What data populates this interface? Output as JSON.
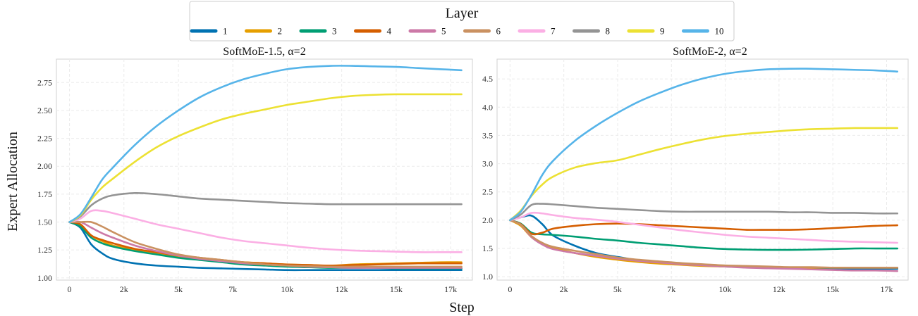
{
  "legend": {
    "title": "Layer",
    "entries": [
      {
        "label": "1",
        "color": "#0072b2"
      },
      {
        "label": "2",
        "color": "#e69f00"
      },
      {
        "label": "3",
        "color": "#009e73"
      },
      {
        "label": "4",
        "color": "#d55e00"
      },
      {
        "label": "5",
        "color": "#cc79a7"
      },
      {
        "label": "6",
        "color": "#ca9161"
      },
      {
        "label": "7",
        "color": "#fbafe4"
      },
      {
        "label": "8",
        "color": "#949494"
      },
      {
        "label": "9",
        "color": "#ece133"
      },
      {
        "label": "10",
        "color": "#56b4e9"
      }
    ]
  },
  "xlabel": "Step",
  "ylabel": "Expert Allocation",
  "chart_data": [
    {
      "type": "line",
      "title": "SoftMoE-1.5, α=2",
      "xlim": [
        -600,
        18500
      ],
      "ylim": [
        0.98,
        2.96
      ],
      "grid": true,
      "x_ticks": [
        0,
        2500,
        5000,
        7500,
        10000,
        12500,
        15000,
        17500
      ],
      "x_tick_labels": [
        "0",
        "2k",
        "5k",
        "7k",
        "10k",
        "12k",
        "15k",
        "17k"
      ],
      "y_ticks": [
        1.0,
        1.25,
        1.5,
        1.75,
        2.0,
        2.25,
        2.5,
        2.75
      ],
      "y_tick_labels": [
        "1.00",
        "1.25",
        "1.50",
        "1.75",
        "2.00",
        "2.25",
        "2.50",
        "2.75"
      ],
      "x": [
        0,
        500,
        1000,
        1500,
        2000,
        3000,
        4000,
        5000,
        6000,
        7000,
        8000,
        9000,
        10000,
        11000,
        12000,
        13000,
        14000,
        15000,
        16000,
        17000,
        18000
      ],
      "series": [
        {
          "name": "1",
          "values": [
            1.5,
            1.45,
            1.3,
            1.22,
            1.17,
            1.13,
            1.11,
            1.1,
            1.09,
            1.085,
            1.08,
            1.075,
            1.07,
            1.07,
            1.07,
            1.07,
            1.07,
            1.07,
            1.07,
            1.07,
            1.07
          ]
        },
        {
          "name": "2",
          "values": [
            1.5,
            1.48,
            1.38,
            1.33,
            1.29,
            1.25,
            1.22,
            1.19,
            1.17,
            1.15,
            1.14,
            1.13,
            1.12,
            1.115,
            1.11,
            1.12,
            1.125,
            1.13,
            1.135,
            1.14,
            1.14
          ]
        },
        {
          "name": "3",
          "values": [
            1.5,
            1.46,
            1.36,
            1.31,
            1.28,
            1.24,
            1.21,
            1.18,
            1.16,
            1.14,
            1.12,
            1.11,
            1.1,
            1.095,
            1.09,
            1.09,
            1.09,
            1.085,
            1.085,
            1.085,
            1.085
          ]
        },
        {
          "name": "4",
          "values": [
            1.5,
            1.48,
            1.38,
            1.34,
            1.31,
            1.26,
            1.23,
            1.2,
            1.18,
            1.16,
            1.14,
            1.13,
            1.12,
            1.115,
            1.11,
            1.115,
            1.12,
            1.125,
            1.13,
            1.13,
            1.13
          ]
        },
        {
          "name": "5",
          "values": [
            1.5,
            1.5,
            1.45,
            1.4,
            1.36,
            1.29,
            1.24,
            1.2,
            1.17,
            1.15,
            1.13,
            1.12,
            1.11,
            1.1,
            1.095,
            1.09,
            1.09,
            1.09,
            1.09,
            1.09,
            1.09
          ]
        },
        {
          "name": "6",
          "values": [
            1.5,
            1.5,
            1.5,
            1.46,
            1.41,
            1.32,
            1.26,
            1.21,
            1.18,
            1.16,
            1.14,
            1.12,
            1.11,
            1.105,
            1.1,
            1.1,
            1.1,
            1.1,
            1.1,
            1.1,
            1.1
          ]
        },
        {
          "name": "7",
          "values": [
            1.5,
            1.53,
            1.6,
            1.6,
            1.58,
            1.53,
            1.48,
            1.44,
            1.4,
            1.36,
            1.33,
            1.31,
            1.29,
            1.27,
            1.255,
            1.245,
            1.24,
            1.235,
            1.23,
            1.23,
            1.23
          ]
        },
        {
          "name": "8",
          "values": [
            1.5,
            1.55,
            1.65,
            1.71,
            1.74,
            1.76,
            1.75,
            1.73,
            1.71,
            1.7,
            1.69,
            1.68,
            1.67,
            1.665,
            1.66,
            1.66,
            1.66,
            1.66,
            1.66,
            1.66,
            1.66
          ]
        },
        {
          "name": "9",
          "values": [
            1.5,
            1.56,
            1.7,
            1.81,
            1.89,
            2.04,
            2.17,
            2.27,
            2.35,
            2.42,
            2.47,
            2.51,
            2.55,
            2.58,
            2.61,
            2.63,
            2.64,
            2.645,
            2.645,
            2.645,
            2.645
          ]
        },
        {
          "name": "10",
          "values": [
            1.5,
            1.57,
            1.72,
            1.88,
            1.99,
            2.19,
            2.36,
            2.5,
            2.62,
            2.71,
            2.78,
            2.83,
            2.87,
            2.89,
            2.9,
            2.9,
            2.895,
            2.89,
            2.88,
            2.87,
            2.86
          ]
        }
      ]
    },
    {
      "type": "line",
      "title": "SoftMoE-2, α=2",
      "xlim": [
        -600,
        18500
      ],
      "ylim": [
        0.94,
        4.85
      ],
      "grid": true,
      "x_ticks": [
        0,
        2500,
        5000,
        7500,
        10000,
        12500,
        15000,
        17500
      ],
      "x_tick_labels": [
        "0",
        "2k",
        "5k",
        "7k",
        "10k",
        "12k",
        "15k",
        "17k"
      ],
      "y_ticks": [
        1.0,
        1.5,
        2.0,
        2.5,
        3.0,
        3.5,
        4.0,
        4.5
      ],
      "y_tick_labels": [
        "1.0",
        "1.5",
        "2.0",
        "2.5",
        "3.0",
        "3.5",
        "4.0",
        "4.5"
      ],
      "x": [
        0,
        500,
        1000,
        1500,
        2000,
        3000,
        4000,
        5000,
        6000,
        7000,
        8000,
        9000,
        10000,
        11000,
        12000,
        13000,
        14000,
        15000,
        16000,
        17000,
        18000
      ],
      "series": [
        {
          "name": "1",
          "values": [
            2.0,
            2.05,
            2.08,
            1.93,
            1.73,
            1.55,
            1.42,
            1.35,
            1.29,
            1.25,
            1.22,
            1.2,
            1.18,
            1.17,
            1.16,
            1.15,
            1.15,
            1.14,
            1.14,
            1.14,
            1.14
          ]
        },
        {
          "name": "2",
          "values": [
            2.0,
            1.9,
            1.7,
            1.58,
            1.51,
            1.42,
            1.35,
            1.3,
            1.26,
            1.23,
            1.21,
            1.19,
            1.18,
            1.17,
            1.16,
            1.16,
            1.16,
            1.16,
            1.16,
            1.16,
            1.16
          ]
        },
        {
          "name": "3",
          "values": [
            2.0,
            1.94,
            1.78,
            1.75,
            1.74,
            1.71,
            1.67,
            1.64,
            1.6,
            1.57,
            1.54,
            1.51,
            1.49,
            1.48,
            1.475,
            1.475,
            1.48,
            1.49,
            1.5,
            1.5,
            1.5
          ]
        },
        {
          "name": "4",
          "values": [
            2.0,
            1.93,
            1.76,
            1.78,
            1.85,
            1.9,
            1.93,
            1.94,
            1.93,
            1.91,
            1.89,
            1.87,
            1.85,
            1.83,
            1.83,
            1.83,
            1.84,
            1.86,
            1.88,
            1.9,
            1.91
          ]
        },
        {
          "name": "5",
          "values": [
            2.0,
            1.92,
            1.7,
            1.57,
            1.49,
            1.42,
            1.37,
            1.32,
            1.28,
            1.25,
            1.22,
            1.2,
            1.18,
            1.16,
            1.15,
            1.14,
            1.13,
            1.12,
            1.11,
            1.11,
            1.1
          ]
        },
        {
          "name": "6",
          "values": [
            2.0,
            1.92,
            1.72,
            1.6,
            1.53,
            1.46,
            1.4,
            1.34,
            1.3,
            1.27,
            1.24,
            1.22,
            1.2,
            1.19,
            1.18,
            1.17,
            1.17,
            1.16,
            1.16,
            1.16,
            1.16
          ]
        },
        {
          "name": "7",
          "values": [
            2.0,
            2.05,
            2.13,
            2.12,
            2.09,
            2.04,
            2.01,
            1.97,
            1.92,
            1.87,
            1.82,
            1.78,
            1.74,
            1.71,
            1.69,
            1.67,
            1.65,
            1.63,
            1.62,
            1.61,
            1.6
          ]
        },
        {
          "name": "8",
          "values": [
            2.0,
            2.1,
            2.27,
            2.29,
            2.28,
            2.25,
            2.22,
            2.2,
            2.18,
            2.16,
            2.15,
            2.15,
            2.15,
            2.15,
            2.15,
            2.14,
            2.14,
            2.13,
            2.13,
            2.12,
            2.12
          ]
        },
        {
          "name": "9",
          "values": [
            2.0,
            2.17,
            2.43,
            2.63,
            2.77,
            2.93,
            3.01,
            3.06,
            3.16,
            3.26,
            3.35,
            3.43,
            3.49,
            3.53,
            3.56,
            3.59,
            3.61,
            3.62,
            3.63,
            3.63,
            3.63
          ]
        },
        {
          "name": "10",
          "values": [
            2.0,
            2.15,
            2.45,
            2.8,
            3.05,
            3.4,
            3.67,
            3.9,
            4.1,
            4.26,
            4.4,
            4.51,
            4.59,
            4.64,
            4.67,
            4.68,
            4.68,
            4.67,
            4.66,
            4.65,
            4.63
          ]
        }
      ]
    }
  ]
}
